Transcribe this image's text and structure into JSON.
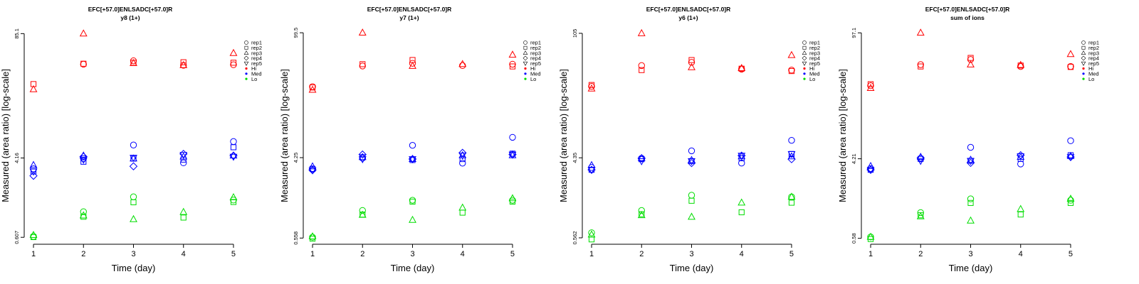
{
  "colors": {
    "Hi": "#ff0000",
    "Med": "#0000ff",
    "Lo": "#00dd00"
  },
  "legend": {
    "shapes": [
      {
        "label": "rep1",
        "shape": "circle"
      },
      {
        "label": "rep2",
        "shape": "square"
      },
      {
        "label": "rep3",
        "shape": "triangle"
      },
      {
        "label": "rep4",
        "shape": "diamond"
      },
      {
        "label": "rep5",
        "shape": "triangle-down"
      }
    ],
    "groups": [
      {
        "label": "Hi",
        "color": "#ff0000"
      },
      {
        "label": "Med",
        "color": "#0000ff"
      },
      {
        "label": "Lo",
        "color": "#00dd00"
      }
    ]
  },
  "chart_data": [
    {
      "type": "scatter",
      "title": "EFC[+57.0]ENLSADC[+57.0]R",
      "subtitle": "y8 (1+)",
      "xlabel": "Time (day)",
      "ylabel": "Measured (area ratio) [log-scale]",
      "x_ticks": [
        1,
        2,
        3,
        4,
        5
      ],
      "y_ticks": [
        0.607,
        4.16,
        85.1
      ],
      "y_tick_labels": [
        "0.607",
        "4.16",
        "85.1"
      ],
      "ylim_log10": [
        -0.26,
        1.97
      ],
      "series": {
        "Hi": {
          "rep1": [
            null,
            40.5,
            44.0,
            39.5,
            40.0
          ],
          "rep2": [
            25.0,
            41.0,
            42.0,
            42.5,
            42.0
          ],
          "rep3": [
            22.0,
            85.1,
            41.5,
            39.5,
            53.0
          ],
          "rep4": [],
          "rep5": []
        },
        "Med": {
          "rep1": [
            3.2,
            4.1,
            5.7,
            3.7,
            6.2
          ],
          "rep2": [
            3.0,
            3.8,
            4.1,
            4.0,
            5.4
          ],
          "rep3": [
            3.5,
            4.4,
            4.1,
            4.3,
            4.4
          ],
          "rep4": [
            2.7,
            4.3,
            3.4,
            4.6,
            4.4
          ],
          "rep5": [
            3.0,
            4.0,
            4.2,
            4.5,
            4.3
          ]
        },
        "Lo": {
          "rep1": [
            0.62,
            1.13,
            1.62,
            null,
            1.5
          ],
          "rep2": [
            0.61,
            1.0,
            1.42,
            0.98,
            1.43
          ],
          "rep3": [
            0.64,
            1.03,
            0.94,
            1.12,
            1.6
          ],
          "rep4": [],
          "rep5": []
        }
      }
    },
    {
      "type": "scatter",
      "title": "EFC[+57.0]ENLSADC[+57.0]R",
      "subtitle": "y7 (1+)",
      "xlabel": "Time (day)",
      "ylabel": "Measured (area ratio) [log-scale]",
      "x_ticks": [
        1,
        2,
        3,
        4,
        5
      ],
      "y_ticks": [
        0.558,
        4.25,
        99.5
      ],
      "y_tick_labels": [
        "0.558",
        "4.25",
        "99.5"
      ],
      "ylim_log10": [
        -0.29,
        2.03
      ],
      "series": {
        "Hi": {
          "rep1": [
            25.5,
            43.0,
            46.0,
            43.5,
            45.0
          ],
          "rep2": [
            25.0,
            45.0,
            50.0,
            null,
            42.5
          ],
          "rep3": [
            23.5,
            99.5,
            43.0,
            45.0,
            57.0
          ],
          "rep4": [],
          "rep5": []
        },
        "Med": {
          "rep1": [
            3.2,
            4.2,
            5.8,
            3.7,
            7.1
          ],
          "rep2": [
            3.2,
            4.3,
            4.0,
            4.1,
            4.7
          ],
          "rep3": [
            3.4,
            4.3,
            4.1,
            4.5,
            4.5
          ],
          "rep4": [
            3.1,
            4.6,
            4.1,
            4.8,
            4.6
          ],
          "rep5": [
            3.1,
            4.1,
            4.1,
            4.5,
            4.6
          ]
        },
        "Lo": {
          "rep1": [
            0.57,
            1.12,
            1.45,
            null,
            1.45
          ],
          "rep2": [
            0.55,
            1.01,
            1.4,
            1.06,
            1.4
          ],
          "rep3": [
            0.58,
            1.0,
            0.88,
            1.2,
            1.52
          ],
          "rep4": [],
          "rep5": []
        }
      }
    },
    {
      "type": "scatter",
      "title": "EFC[+57.0]ENLSADC[+57.0]R",
      "subtitle": "y6 (1+)",
      "xlabel": "Time (day)",
      "ylabel": "Measured (area ratio) [log-scale]",
      "x_ticks": [
        1,
        2,
        3,
        4,
        5
      ],
      "y_ticks": [
        0.562,
        4.35,
        105
      ],
      "y_tick_labels": [
        "0.562",
        "4.35",
        "105"
      ],
      "ylim_log10": [
        -0.29,
        2.06
      ],
      "series": {
        "Hi": {
          "rep1": [
            27.0,
            46.0,
            50.0,
            42.0,
            41.0
          ],
          "rep2": [
            28.0,
            41.0,
            53.0,
            42.5,
            40.0
          ],
          "rep3": [
            25.5,
            105.0,
            44.0,
            43.0,
            60.0
          ],
          "rep4": [],
          "rep5": []
        },
        "Med": {
          "rep1": [
            3.4,
            4.3,
            5.2,
            3.8,
            6.8
          ],
          "rep2": [
            3.2,
            4.2,
            4.0,
            4.3,
            4.8
          ],
          "rep3": [
            3.6,
            4.3,
            4.1,
            4.5,
            4.5
          ],
          "rep4": [
            3.2,
            4.3,
            3.8,
            4.6,
            4.2
          ],
          "rep5": [
            3.2,
            4.0,
            4.0,
            4.6,
            4.8
          ]
        },
        "Lo": {
          "rep1": [
            0.64,
            1.13,
            1.67,
            null,
            1.6
          ],
          "rep2": [
            0.54,
            1.03,
            1.45,
            1.08,
            1.38
          ],
          "rep3": [
            0.61,
            1.0,
            0.96,
            1.38,
            1.6
          ],
          "rep4": [],
          "rep5": []
        }
      }
    },
    {
      "type": "scatter",
      "title": "EFC[+57.0]ENLSADC[+57.0]R",
      "subtitle": "sum of ions",
      "xlabel": "Time (day)",
      "ylabel": "Measured (area ratio) [log-scale]",
      "x_ticks": [
        1,
        2,
        3,
        4,
        5
      ],
      "y_ticks": [
        0.58,
        4.21,
        97.1
      ],
      "y_tick_labels": [
        "0.58",
        "4.21",
        "97.1"
      ],
      "ylim_log10": [
        -0.27,
        2.02
      ],
      "series": {
        "Hi": {
          "rep1": [
            26.0,
            44.0,
            50.0,
            42.0,
            42.0
          ],
          "rep2": [
            27.0,
            42.0,
            52.0,
            43.0,
            41.5
          ],
          "rep3": [
            24.5,
            97.1,
            44.0,
            43.5,
            57.0
          ],
          "rep4": [],
          "rep5": []
        },
        "Med": {
          "rep1": [
            3.3,
            4.2,
            5.6,
            3.7,
            6.6
          ],
          "rep2": [
            3.2,
            4.2,
            4.0,
            4.2,
            4.6
          ],
          "rep3": [
            3.5,
            4.4,
            4.1,
            4.4,
            4.5
          ],
          "rep4": [
            3.2,
            4.3,
            3.8,
            4.6,
            4.4
          ],
          "rep5": [
            3.2,
            4.0,
            4.0,
            4.5,
            4.4
          ]
        },
        "Lo": {
          "rep1": [
            0.6,
            1.1,
            1.55,
            null,
            1.5
          ],
          "rep2": [
            0.57,
            1.03,
            1.4,
            1.05,
            1.4
          ],
          "rep3": [
            0.6,
            1.0,
            0.9,
            1.2,
            1.55
          ],
          "rep4": [],
          "rep5": []
        }
      }
    }
  ]
}
